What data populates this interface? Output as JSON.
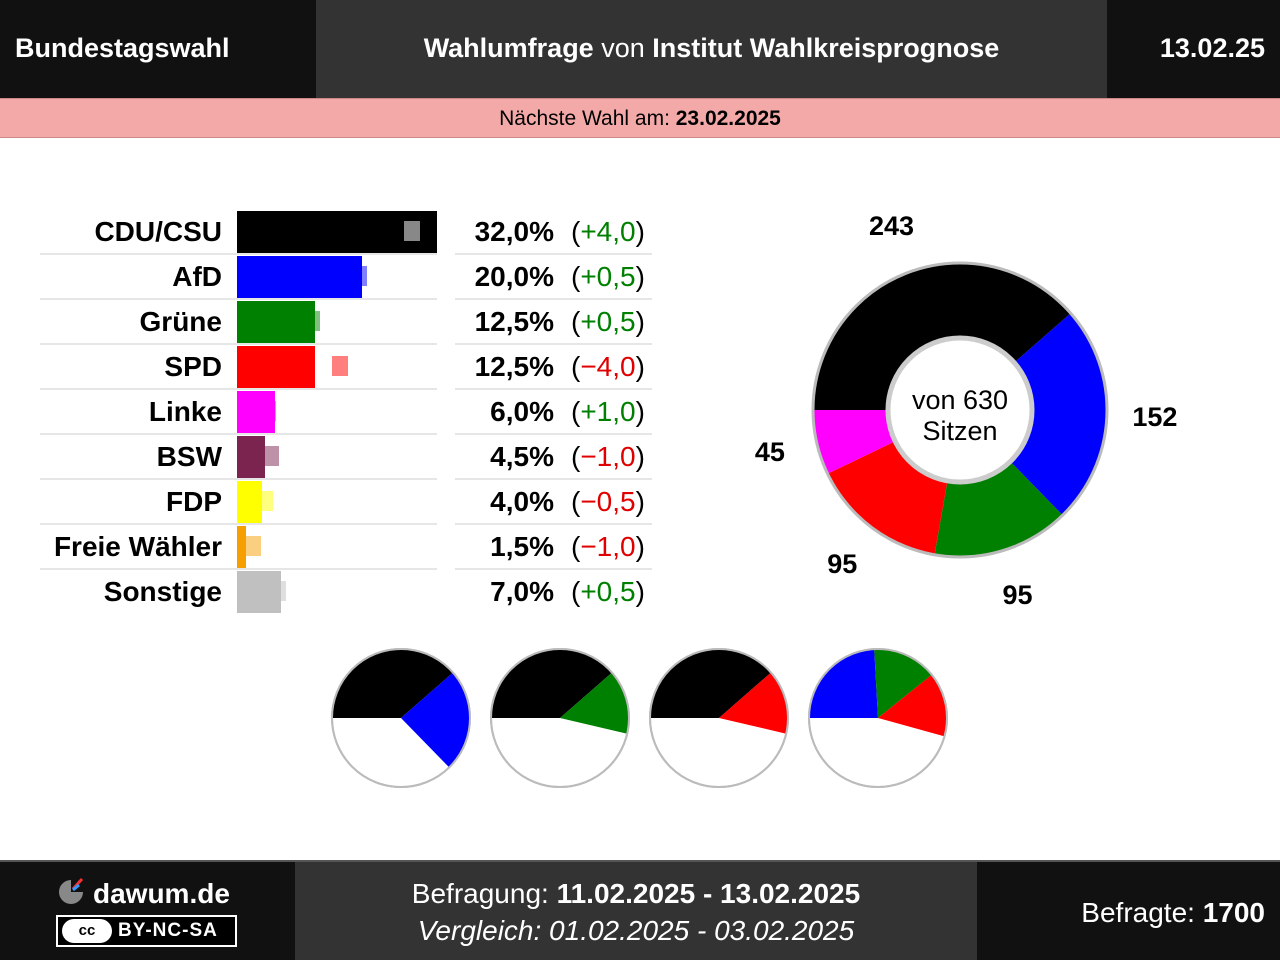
{
  "header": {
    "left": "Bundestagswahl",
    "center_bold1": "Wahlumfrage",
    "center_mid": " von ",
    "center_bold2": "Institut Wahlkreisprognose",
    "right": "13.02.25"
  },
  "next_election": {
    "label": "Nächste Wahl am: ",
    "date": "23.02.2025"
  },
  "chart_data": [
    {
      "type": "bar",
      "title": "",
      "categories": [
        "CDU/CSU",
        "AfD",
        "Grüne",
        "SPD",
        "Linke",
        "BSW",
        "FDP",
        "Freie Wähler",
        "Sonstige"
      ],
      "values": [
        32.0,
        20.0,
        12.5,
        12.5,
        6.0,
        4.5,
        4.0,
        1.5,
        7.0
      ],
      "value_labels": [
        "32,0%",
        "20,0%",
        "12,5%",
        "12,5%",
        "6,0%",
        "4,5%",
        "4,0%",
        "1,5%",
        "7,0%"
      ],
      "changes": [
        4.0,
        0.5,
        0.5,
        -4.0,
        1.0,
        -1.0,
        -0.5,
        -1.0,
        0.5
      ],
      "change_labels": [
        "+4,0",
        "+0,5",
        "+0,5",
        "−4,0",
        "+1,0",
        "−1,0",
        "−0,5",
        "−1,0",
        "+0,5"
      ],
      "previous_values": [
        28.0,
        19.5,
        12.0,
        16.5,
        5.0,
        5.5,
        4.5,
        2.5,
        6.5
      ],
      "colors": [
        "#000000",
        "#0000ff",
        "#008000",
        "#ff0000",
        "#ff00ff",
        "#7b2450",
        "#ffff00",
        "#f5a000",
        "#c0c0c0"
      ],
      "positive_color": "#008000",
      "negative_color": "#e00000"
    },
    {
      "type": "pie",
      "title": "",
      "center_text": [
        "von 630",
        "Sitzen"
      ],
      "total": 630,
      "categories": [
        "CDU/CSU",
        "AfD",
        "Grüne",
        "SPD",
        "Linke"
      ],
      "values": [
        243,
        152,
        95,
        95,
        45
      ],
      "colors": [
        "#000000",
        "#0000ff",
        "#008000",
        "#ff0000",
        "#ff00ff"
      ]
    },
    {
      "type": "pie",
      "title": "",
      "coalitions": [
        {
          "parties": [
            "CDU/CSU",
            "AfD"
          ],
          "values": [
            243,
            152
          ],
          "colors": [
            "#000000",
            "#0000ff"
          ]
        },
        {
          "parties": [
            "CDU/CSU",
            "Grüne"
          ],
          "values": [
            243,
            95
          ],
          "colors": [
            "#000000",
            "#008000"
          ]
        },
        {
          "parties": [
            "CDU/CSU",
            "SPD"
          ],
          "values": [
            243,
            95
          ],
          "colors": [
            "#000000",
            "#ff0000"
          ]
        },
        {
          "parties": [
            "AfD",
            "Grüne",
            "SPD"
          ],
          "values": [
            152,
            95,
            95
          ],
          "colors": [
            "#0000ff",
            "#008000",
            "#ff0000"
          ]
        }
      ]
    }
  ],
  "footer": {
    "site": "dawum.de",
    "cc_badge": "cc",
    "license": "BY-NC-SA",
    "survey_label": "Befragung: ",
    "survey_range": "11.02.2025 - 13.02.2025",
    "compare": "Vergleich: 01.02.2025 - 03.02.2025",
    "respondents_label": "Befragte: ",
    "respondents": "1700"
  }
}
